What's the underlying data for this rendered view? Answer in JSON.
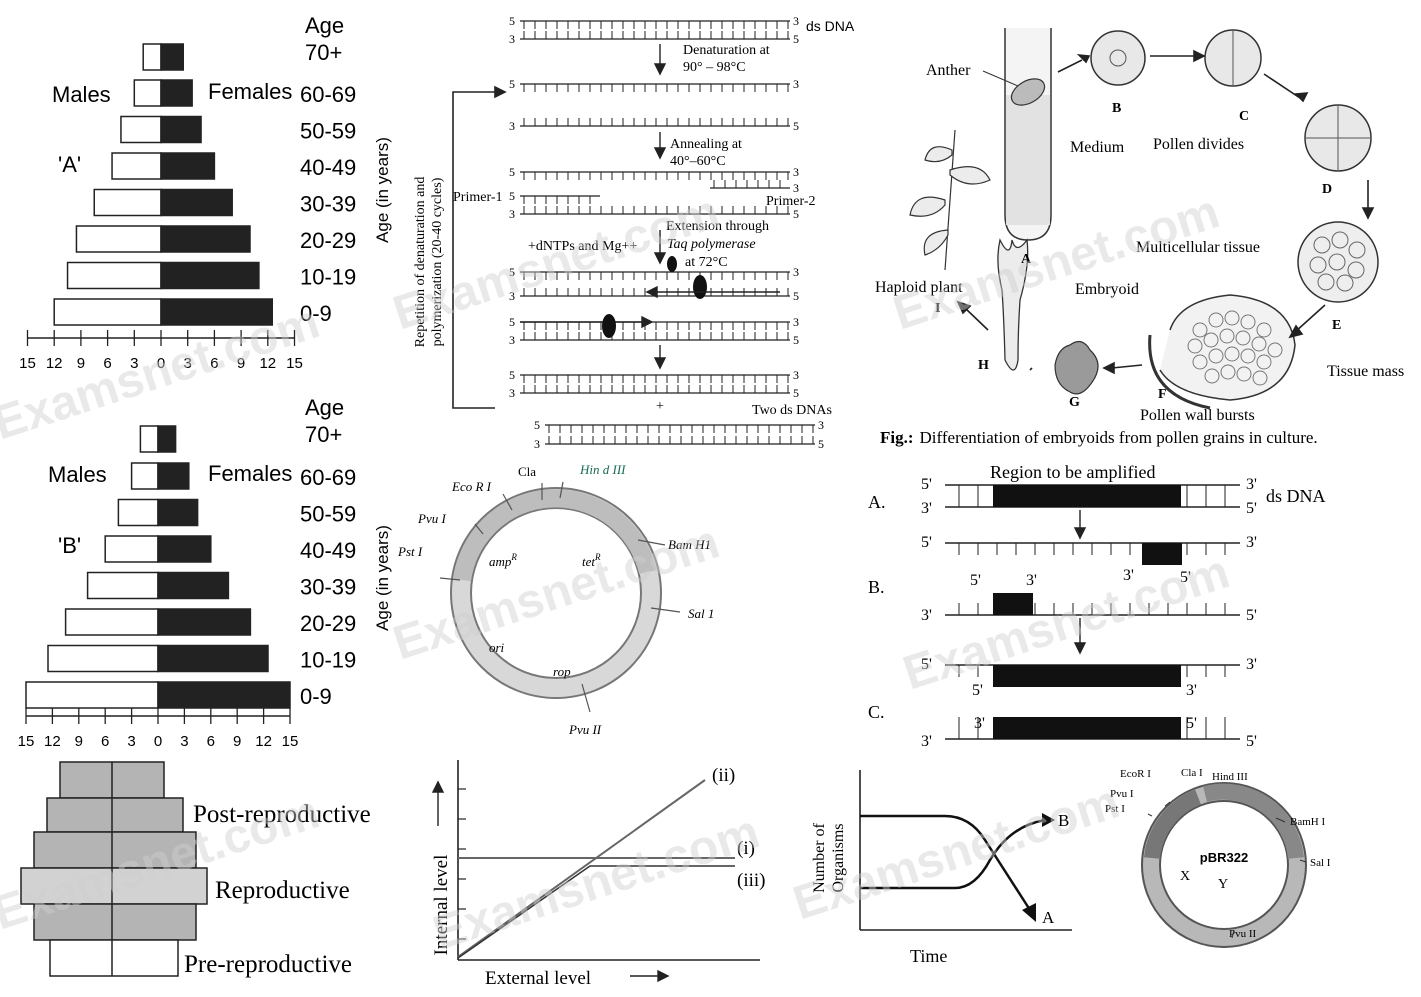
{
  "watermark": "Examsnet.com",
  "pyramid_a": {
    "label": "'A'",
    "age_header": [
      "Age",
      "70+"
    ],
    "males": "Males",
    "females": "Females",
    "age_axis": "Age (in years)",
    "age_groups": [
      "0-9",
      "10-19",
      "20-29",
      "30-39",
      "40-49",
      "50-59",
      "60-69"
    ],
    "male_values": [
      12,
      10.5,
      9.5,
      7.5,
      5.5,
      4.5,
      3
    ],
    "female_values": [
      12.5,
      11,
      10,
      8,
      6,
      4.5,
      3.5
    ],
    "top_male": 2,
    "top_female": 2.5,
    "ticks": [
      "15",
      "12",
      "9",
      "6",
      "3",
      "0",
      "3",
      "6",
      "9",
      "12",
      "15"
    ]
  },
  "pyramid_b": {
    "label": "'B'",
    "age_header": [
      "Age",
      "70+"
    ],
    "males": "Males",
    "females": "Females",
    "age_axis": "Age (in years)",
    "age_groups": [
      "0-9",
      "10-19",
      "20-29",
      "30-39",
      "40-49",
      "50-59",
      "60-69"
    ],
    "male_values": [
      15,
      12.5,
      10.5,
      8,
      6,
      4.5,
      3
    ],
    "female_values": [
      15,
      12.5,
      10.5,
      8,
      6,
      4.5,
      3.5
    ],
    "top_male": 2,
    "top_female": 2,
    "ticks": [
      "15",
      "12",
      "9",
      "6",
      "3",
      "0",
      "3",
      "6",
      "9",
      "12",
      "15"
    ]
  },
  "pyramid_c": {
    "labels": [
      "Post-reproductive",
      "Reproductive",
      "Pre-reproductive"
    ]
  },
  "pcr_process": {
    "ds_dna": "ds DNA",
    "denaturation": [
      "Denaturation at",
      "90° – 98°C"
    ],
    "annealing": [
      "Annealing at",
      "40°–60°C"
    ],
    "primer1": "Primer-1",
    "primer2": "Primer-2",
    "extension": [
      "Extension through",
      "Taq polymerase",
      "at 72°C"
    ],
    "dntps": "+dNTPs and Mg++",
    "repeat_label": [
      "Repetition of denaturation and",
      "polymerization (20-40 cycles)"
    ],
    "plus": "+",
    "two_ds": "Two ds DNAs",
    "five": "5",
    "three": "3"
  },
  "plasmid_1": {
    "sites": [
      "Eco R I",
      "Cla",
      "Hin d III",
      "Bam H1",
      "Sal 1",
      "Pvu II",
      "Pst I",
      "Pvu I"
    ],
    "genes": [
      "amp",
      "tet",
      "ori",
      "rop"
    ],
    "sup": "R"
  },
  "graph": {
    "ylabel": "Internal level",
    "xlabel": "External level",
    "lines": [
      "(i)",
      "(ii)",
      "(iii)"
    ]
  },
  "embryoid": {
    "labels": [
      "Anther",
      "Medium",
      "Pollen divides",
      "Multicellular tissue",
      "Tissue mass",
      "Pollen wall bursts",
      "Embryoid",
      "Haploid plant"
    ],
    "letters": [
      "A",
      "B",
      "C",
      "D",
      "E",
      "F",
      "G",
      "H",
      "I"
    ],
    "caption_bold": "Fig.:",
    "caption": "Differentiation of embryoids from pollen grains in culture."
  },
  "pcr_amp": {
    "title": "Region to be amplified",
    "ds_dna": "ds DNA",
    "steps": [
      "A.",
      "B.",
      "C."
    ],
    "p5": "5'",
    "p3": "3'"
  },
  "growth": {
    "ylabel": [
      "Number of",
      "Organisms"
    ],
    "xlabel": "Time",
    "a": "A",
    "b": "B"
  },
  "plasmid_2": {
    "name": "pBR322",
    "sites": [
      "EcoR I",
      "Cla I",
      "Hind III",
      "Pvu I",
      "Pst I",
      "BamH I",
      "Sal I",
      "Pvu II"
    ],
    "marks": [
      "X",
      "Y"
    ]
  }
}
